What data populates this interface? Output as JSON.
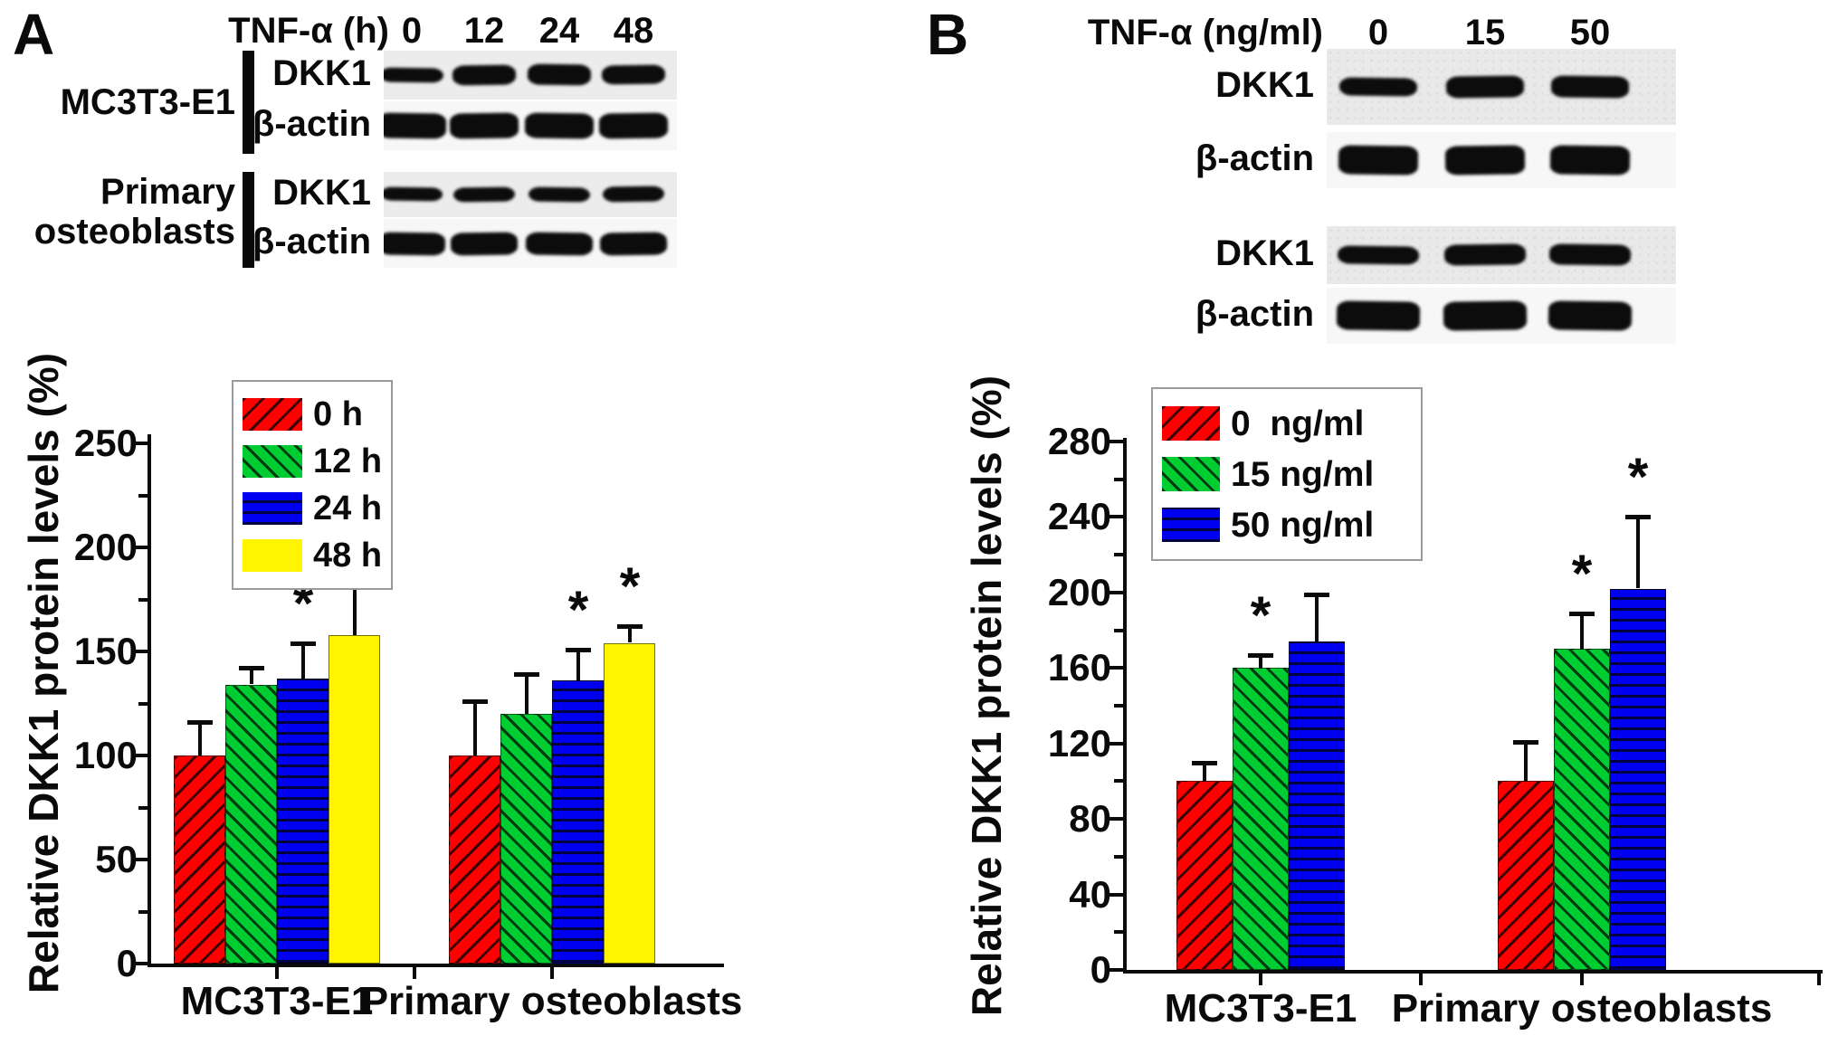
{
  "figure": {
    "panels": [
      {
        "letter": "A",
        "blot": {
          "treatment_label": "TNF-α (h)",
          "lane_labels": [
            "0",
            "12",
            "24",
            "48"
          ],
          "groups": [
            {
              "name_lines": [
                "MC3T3-E1"
              ],
              "rows": [
                {
                  "label": "DKK1",
                  "band_rel_heights": [
                    0.55,
                    0.9,
                    0.95,
                    0.85
                  ]
                },
                {
                  "label": "β-actin",
                  "band_rel_heights": [
                    1,
                    1,
                    1,
                    1
                  ]
                }
              ]
            },
            {
              "name_lines": [
                "Primary",
                "osteoblasts"
              ],
              "rows": [
                {
                  "label": "DKK1",
                  "band_rel_heights": [
                    0.65,
                    0.7,
                    0.72,
                    0.8
                  ]
                },
                {
                  "label": "β-actin",
                  "band_rel_heights": [
                    0.95,
                    0.95,
                    0.95,
                    0.95
                  ]
                }
              ]
            }
          ]
        }
      },
      {
        "letter": "B",
        "blot": {
          "treatment_label": "TNF-α (ng/ml)",
          "lane_labels": [
            "0",
            "15",
            "50"
          ],
          "groups": [
            {
              "name_lines": [],
              "rows": [
                {
                  "label": "DKK1",
                  "band_rel_heights": [
                    0.7,
                    0.92,
                    0.88
                  ]
                },
                {
                  "label": "β-actin",
                  "band_rel_heights": [
                    1,
                    1,
                    1
                  ]
                }
              ]
            },
            {
              "name_lines": [],
              "rows": [
                {
                  "label": "DKK1",
                  "band_rel_heights": [
                    0.75,
                    0.95,
                    0.95
                  ]
                },
                {
                  "label": "β-actin",
                  "band_rel_heights": [
                    1,
                    1,
                    1
                  ]
                }
              ]
            }
          ]
        }
      }
    ]
  },
  "chart_data": [
    {
      "type": "bar",
      "title": "",
      "ylabel": "Relative DKK1 protein levels (%)",
      "xlabel": "",
      "categories": [
        "MC3T3-E1",
        "Primary osteoblasts"
      ],
      "ylim": [
        0,
        250
      ],
      "ytick_step": 50,
      "grid": false,
      "legend_position": "upper-left",
      "sig_marker": "*",
      "series": [
        {
          "name": "0 h",
          "color": "#fe0000",
          "hatch": "diag-up",
          "values": [
            100,
            100
          ],
          "errors": [
            16,
            26
          ],
          "sig": [
            false,
            false
          ]
        },
        {
          "name": "12 h",
          "color": "#00cd32",
          "hatch": "diag-down",
          "values": [
            134,
            120
          ],
          "errors": [
            8,
            19
          ],
          "sig": [
            false,
            false
          ]
        },
        {
          "name": "24 h",
          "color": "#0000f0",
          "hatch": "horiz",
          "values": [
            137,
            136
          ],
          "errors": [
            17,
            15
          ],
          "sig": [
            true,
            true
          ]
        },
        {
          "name": "48 h",
          "color": "#fff500",
          "hatch": "none",
          "values": [
            158,
            154
          ],
          "errors": [
            32,
            8
          ],
          "sig": [
            true,
            true
          ]
        }
      ]
    },
    {
      "type": "bar",
      "title": "",
      "ylabel": "Relative DKK1 protein levels (%)",
      "xlabel": "",
      "categories": [
        "MC3T3-E1",
        "Primary osteoblasts"
      ],
      "ylim": [
        0,
        280
      ],
      "ytick_step": 40,
      "grid": false,
      "legend_position": "upper-left",
      "sig_marker": "*",
      "series": [
        {
          "name": "0  ng/ml",
          "color": "#fe0000",
          "hatch": "diag-up",
          "values": [
            100,
            100
          ],
          "errors": [
            10,
            21
          ],
          "sig": [
            false,
            false
          ]
        },
        {
          "name": "15 ng/ml",
          "color": "#00cd32",
          "hatch": "diag-down",
          "values": [
            160,
            170
          ],
          "errors": [
            7,
            19
          ],
          "sig": [
            true,
            true
          ]
        },
        {
          "name": "50 ng/ml",
          "color": "#0000f0",
          "hatch": "horiz",
          "values": [
            174,
            202
          ],
          "errors": [
            25,
            38
          ],
          "sig": [
            true,
            true
          ]
        }
      ]
    }
  ]
}
